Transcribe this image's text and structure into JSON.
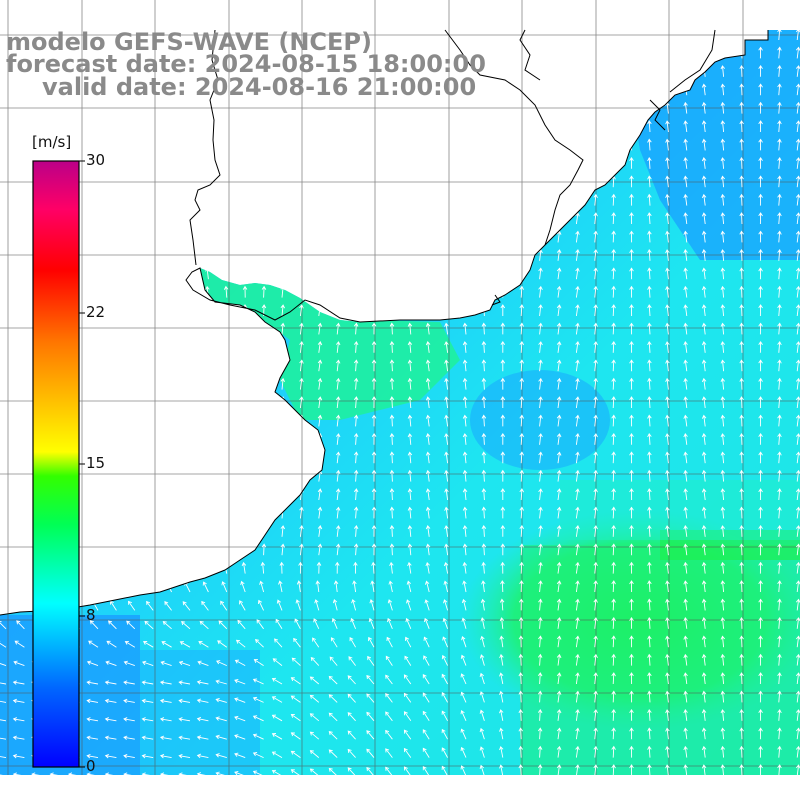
{
  "header": {
    "line1": "modelo GEFS-WAVE (NCEP)",
    "line2": "forecast date: 2024-08-15 18:00:00",
    "line3": "valid date: 2024-08-16 21:00:00"
  },
  "colorbar": {
    "unit": "[m/s]",
    "ticks": [
      "30",
      "22",
      "15",
      "8",
      "0"
    ],
    "min": 0,
    "max": 30,
    "colors": [
      "#0000ff",
      "#00aaff",
      "#00ffff",
      "#00ff00",
      "#ffff00",
      "#ff8800",
      "#ff0000",
      "#ff0066",
      "#cc0099"
    ]
  },
  "map": {
    "land_color": "#ffffff",
    "coast_color": "#000000",
    "grid_color": "#555555",
    "arrow_color": "#ffffff",
    "field_colors": {
      "calm_blue": "#1a8cff",
      "mid_blue": "#1eb4ff",
      "cyan": "#1ee6f0",
      "green_cyan": "#1ef0b4",
      "green": "#1ef070"
    }
  }
}
